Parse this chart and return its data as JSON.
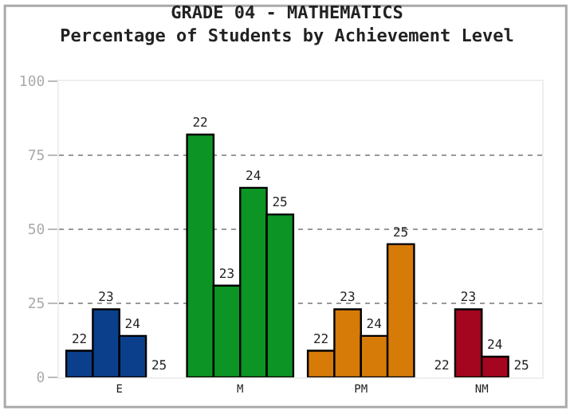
{
  "chart_data": {
    "type": "bar",
    "title": "GRADE 04 - MATHEMATICS",
    "subtitle": "Percentage of Students by Achievement Level",
    "categories": [
      "E",
      "M",
      "PM",
      "NM"
    ],
    "series": [
      {
        "name": "22",
        "colors": [
          "#0b3f8c",
          "#0c9424",
          "#d67b08",
          "#a4051f"
        ],
        "values": [
          9,
          82,
          9,
          0
        ]
      },
      {
        "name": "23",
        "colors": [
          "#0b3f8c",
          "#0c9424",
          "#d67b08",
          "#a4051f"
        ],
        "values": [
          23,
          31,
          23,
          23
        ]
      },
      {
        "name": "24",
        "colors": [
          "#0b3f8c",
          "#0c9424",
          "#d67b08",
          "#a4051f"
        ],
        "values": [
          14,
          64,
          14,
          7
        ]
      },
      {
        "name": "25",
        "colors": [
          "#0b3f8c",
          "#0c9424",
          "#d67b08",
          "#a4051f"
        ],
        "values": [
          0,
          55,
          45,
          0
        ]
      }
    ],
    "ylim": [
      0,
      100
    ],
    "yticks": [
      0,
      25,
      50,
      75,
      100
    ],
    "grid": "y",
    "legend": false
  }
}
